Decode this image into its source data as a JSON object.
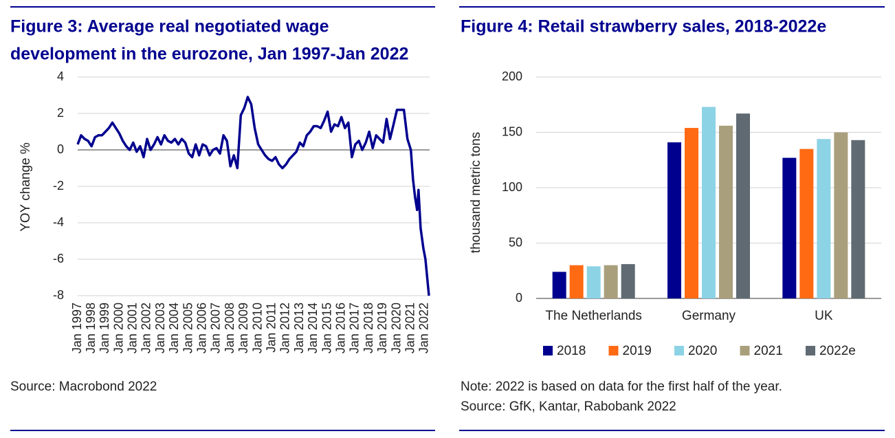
{
  "chart_data": [
    {
      "type": "line",
      "title": [
        "Figure 3: Average real negotiated wage",
        "development in the eurozone, Jan 1997-Jan 2022"
      ],
      "ylabel": "YOY change %",
      "color": "#00008f",
      "x": [
        1997,
        1997.25,
        1997.5,
        1997.75,
        1998,
        1998.25,
        1998.5,
        1998.75,
        1999,
        1999.25,
        1999.5,
        1999.75,
        2000,
        2000.25,
        2000.5,
        2000.75,
        2001,
        2001.25,
        2001.5,
        2001.75,
        2002,
        2002.25,
        2002.5,
        2002.75,
        2003,
        2003.25,
        2003.5,
        2003.75,
        2004,
        2004.25,
        2004.5,
        2004.75,
        2005,
        2005.25,
        2005.5,
        2005.75,
        2006,
        2006.25,
        2006.5,
        2006.75,
        2007,
        2007.25,
        2007.5,
        2007.75,
        2008,
        2008.25,
        2008.5,
        2008.75,
        2009,
        2009.25,
        2009.5,
        2009.75,
        2010,
        2010.25,
        2010.5,
        2010.75,
        2011,
        2011.25,
        2011.5,
        2011.75,
        2012,
        2012.25,
        2012.5,
        2012.75,
        2013,
        2013.25,
        2013.5,
        2013.75,
        2014,
        2014.25,
        2014.5,
        2014.75,
        2015,
        2015.25,
        2015.5,
        2015.75,
        2016,
        2016.25,
        2016.5,
        2016.75,
        2017,
        2017.25,
        2017.5,
        2017.75,
        2018,
        2018.25,
        2018.5,
        2018.75,
        2019,
        2019.25,
        2019.5,
        2019.75,
        2020,
        2020.25,
        2020.5,
        2020.75,
        2021,
        2021.15,
        2021.3,
        2021.45,
        2021.55,
        2021.7,
        2021.9,
        2022.05,
        2022.3
      ],
      "values": [
        0.3,
        0.8,
        0.6,
        0.5,
        0.2,
        0.7,
        0.8,
        0.8,
        1.0,
        1.2,
        1.5,
        1.2,
        0.9,
        0.5,
        0.2,
        0.0,
        0.4,
        -0.1,
        0.2,
        -0.4,
        0.6,
        0.0,
        0.3,
        0.7,
        0.3,
        0.8,
        0.5,
        0.4,
        0.6,
        0.3,
        0.6,
        0.4,
        -0.2,
        -0.4,
        0.3,
        -0.3,
        0.3,
        0.2,
        -0.3,
        0.0,
        0.1,
        -0.2,
        0.8,
        0.5,
        -0.9,
        -0.3,
        -1.0,
        1.9,
        2.3,
        2.9,
        2.5,
        1.2,
        0.3,
        0.0,
        -0.3,
        -0.5,
        -0.6,
        -0.4,
        -0.8,
        -1.0,
        -0.8,
        -0.5,
        -0.3,
        -0.1,
        0.4,
        0.2,
        0.8,
        1.0,
        1.3,
        1.3,
        1.2,
        1.6,
        2.1,
        1.0,
        1.4,
        1.3,
        1.8,
        1.2,
        1.5,
        -0.4,
        0.3,
        0.5,
        0.0,
        0.4,
        1.0,
        0.1,
        0.8,
        0.6,
        0.4,
        1.7,
        0.6,
        1.4,
        2.2,
        2.2,
        2.2,
        0.6,
        0.0,
        -1.6,
        -2.6,
        -3.3,
        -2.2,
        -4.3,
        -5.4,
        -6.0,
        -8.0
      ],
      "xlim": [
        1997,
        2022.35
      ],
      "ylim": [
        -8,
        4
      ],
      "yticks": [
        -8,
        -6,
        -4,
        -2,
        0,
        2,
        4
      ],
      "xticks": [
        {
          "value": 1997,
          "label": "Jan 1997"
        },
        {
          "value": 1998,
          "label": "Jan 1998"
        },
        {
          "value": 1999,
          "label": "Jan 1999"
        },
        {
          "value": 2000,
          "label": "Jan 2000"
        },
        {
          "value": 2001,
          "label": "Jan 2001"
        },
        {
          "value": 2002,
          "label": "Jan 2002"
        },
        {
          "value": 2003,
          "label": "Jan 2003"
        },
        {
          "value": 2004,
          "label": "Jan 2004"
        },
        {
          "value": 2005,
          "label": "Jan 2005"
        },
        {
          "value": 2006,
          "label": "Jan 2006"
        },
        {
          "value": 2007,
          "label": "Jan 2007"
        },
        {
          "value": 2008,
          "label": "Jan 2008"
        },
        {
          "value": 2009,
          "label": "Jan 2009"
        },
        {
          "value": 2010,
          "label": "Jan 2010"
        },
        {
          "value": 2011,
          "label": "Jan 2011"
        },
        {
          "value": 2012,
          "label": "Jan 2012"
        },
        {
          "value": 2013,
          "label": "Jan 2013"
        },
        {
          "value": 2014,
          "label": "Jan 2014"
        },
        {
          "value": 2015,
          "label": "Jan 2015"
        },
        {
          "value": 2016,
          "label": "Jan 2016"
        },
        {
          "value": 2017,
          "label": "Jan 2017"
        },
        {
          "value": 2018,
          "label": "Jan 2018"
        },
        {
          "value": 2019,
          "label": "Jan 2019"
        },
        {
          "value": 2020,
          "label": "Jan 2020"
        },
        {
          "value": 2021,
          "label": "Jan 2021"
        },
        {
          "value": 2022,
          "label": "Jan 2022"
        }
      ],
      "grid": true,
      "source": "Source: Macrobond 2022"
    },
    {
      "type": "bar",
      "title": [
        "Figure 4: Retail strawberry sales, 2018-2022e"
      ],
      "ylabel": "thousand metric tons",
      "categories": [
        "The Netherlands",
        "Germany",
        "UK"
      ],
      "series": [
        {
          "name": "2018",
          "color": "#00008f",
          "values": [
            24,
            141,
            127
          ]
        },
        {
          "name": "2019",
          "color": "#ff6a13",
          "values": [
            30,
            154,
            135
          ]
        },
        {
          "name": "2020",
          "color": "#8dd3e6",
          "values": [
            29,
            173,
            144
          ]
        },
        {
          "name": "2021",
          "color": "#aa9f7c",
          "values": [
            30,
            156,
            150
          ]
        },
        {
          "name": "2022e",
          "color": "#5f6a72",
          "values": [
            31,
            167,
            143
          ]
        }
      ],
      "ylim": [
        0,
        200
      ],
      "yticks": [
        0,
        50,
        100,
        150,
        200
      ],
      "grid": true,
      "note": "Note: 2022 is based on data for the first half of the year.",
      "source": "Source: GfK, Kantar, Rabobank 2022"
    }
  ]
}
